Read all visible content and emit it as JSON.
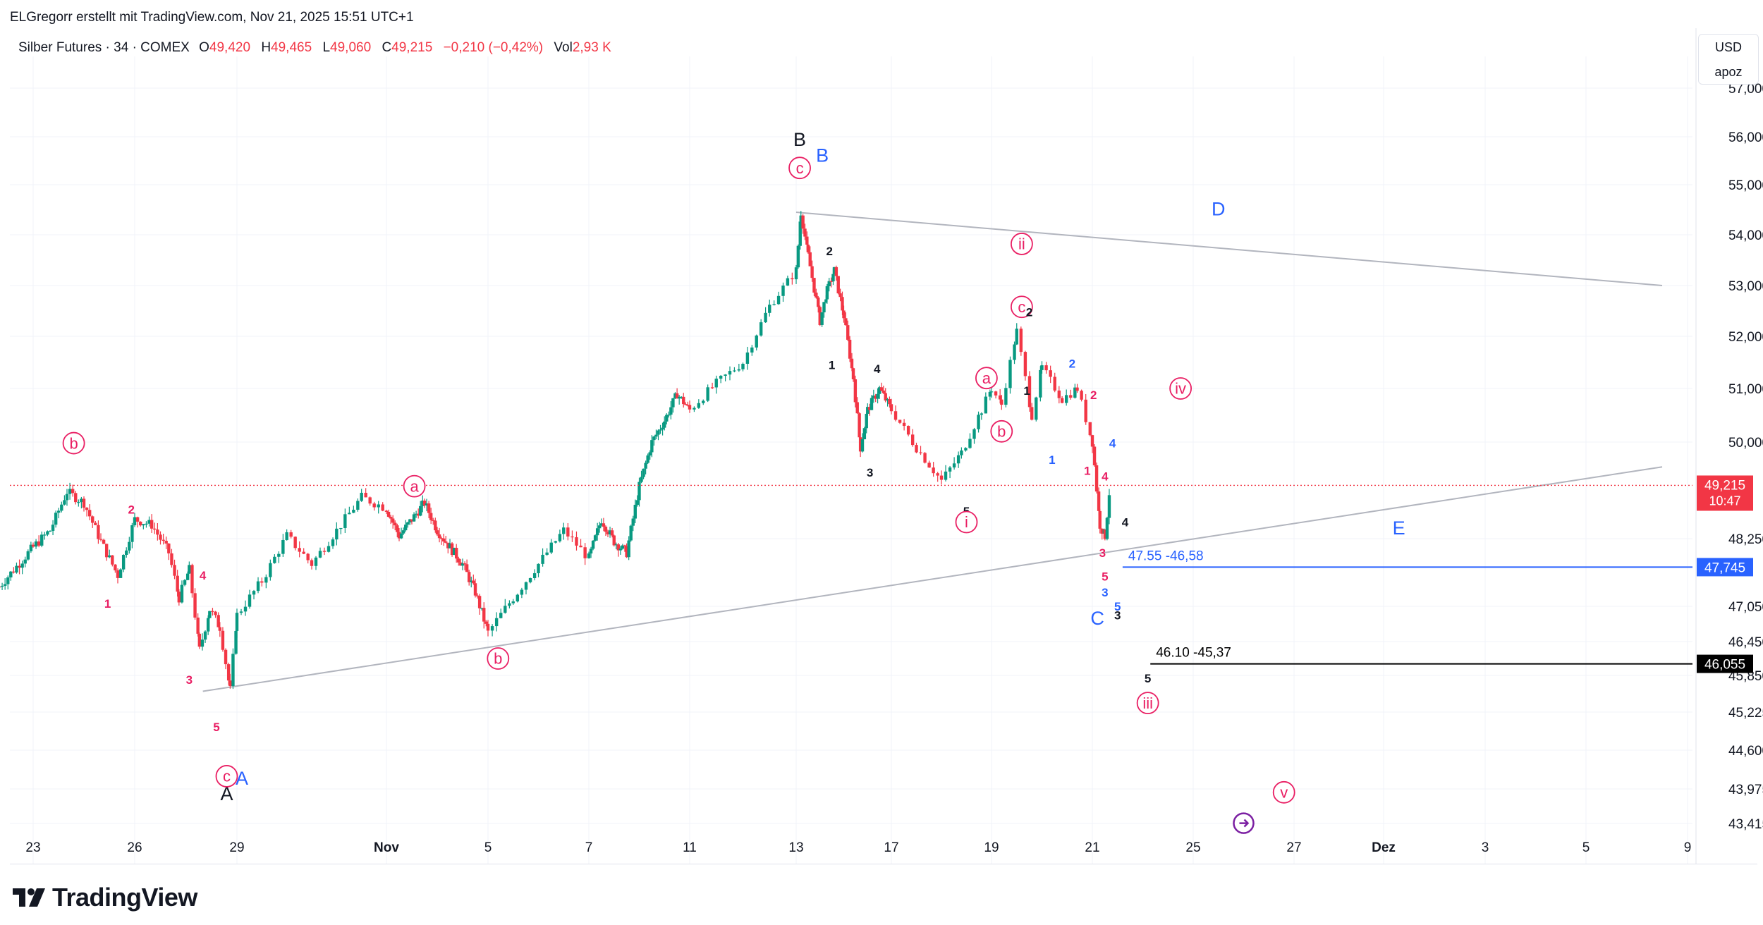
{
  "credit": "ELGregorr erstellt mit TradingView.com, Nov 21, 2025 15:51 UTC+1",
  "legend": {
    "symbol": "Silber Futures · 34 · COMEX",
    "o_label": "O",
    "o": "49,420",
    "h_label": "H",
    "h": "49,465",
    "l_label": "L",
    "l": "49,060",
    "c_label": "C",
    "c": "49,215",
    "change": "−0,210 (−0,42%)",
    "vol_label": "Vol",
    "vol": "2,93 K"
  },
  "currency": {
    "code": "USD",
    "unit": "apoz"
  },
  "brand": "TradingView",
  "colors": {
    "up": "#089981",
    "down": "#f23645",
    "wave_pink": "#e91e63",
    "wave_blue": "#2962ff",
    "wave_black": "#131722",
    "trendline": "#b2b5be",
    "price_line": "#f23645",
    "purple": "#7b1fa2"
  },
  "chart_data": {
    "type": "candlestick",
    "x_ticks": [
      "23",
      "26",
      "29",
      "Nov",
      "5",
      "7",
      "11",
      "13",
      "17",
      "19",
      "21",
      "25",
      "27",
      "Dez",
      "3",
      "5",
      "9"
    ],
    "y_ticks": [
      "57,000",
      "56,000",
      "55,000",
      "54,000",
      "53,000",
      "52,000",
      "51,000",
      "50,000",
      "48,250",
      "47,050",
      "46,450",
      "45,850",
      "45,225",
      "44,600",
      "43,975",
      "43,415"
    ],
    "y_range": [
      43.2,
      57.3
    ],
    "price_line": {
      "value": 49.215,
      "label": "49,215",
      "countdown": "10:47"
    },
    "horizontal_levels": [
      {
        "value": 47.745,
        "axis_label": "47,745",
        "note": "47.55 -46,58",
        "color": "#2962ff"
      },
      {
        "value": 46.055,
        "axis_label": "46,055",
        "note": "46.10 -45,37",
        "color": "#000000"
      }
    ],
    "trendlines": [
      {
        "from": [
          "Oct 28",
          45.58
        ],
        "to": [
          "Dec 8",
          49.55
        ]
      },
      {
        "from": [
          "Nov 13",
          54.45
        ],
        "to": [
          "Dec 8",
          53.0
        ]
      }
    ],
    "price_path": [
      [
        "Oct 22",
        47.4
      ],
      [
        "Oct 23",
        48.1
      ],
      [
        "Oct 23.5",
        48.4
      ],
      [
        "Oct 24",
        49.1
      ],
      [
        "Oct 24.5",
        48.9
      ],
      [
        "Oct 25",
        48.2
      ],
      [
        "Oct 25.5",
        47.6
      ],
      [
        "Oct 26",
        48.6
      ],
      [
        "Oct 26.5",
        48.5
      ],
      [
        "Oct 27",
        48.0
      ],
      [
        "Oct 27.3",
        47.2
      ],
      [
        "Oct 27.6",
        47.7
      ],
      [
        "Oct 27.9",
        46.3
      ],
      [
        "Oct 28.2",
        47.0
      ],
      [
        "Oct 28.5",
        46.7
      ],
      [
        "Oct 28.8",
        45.6
      ],
      [
        "Oct 29",
        46.9
      ],
      [
        "Oct 29.5",
        47.5
      ],
      [
        "Oct 30",
        48.3
      ],
      [
        "Oct 30.5",
        47.8
      ],
      [
        "Oct 31",
        48.4
      ],
      [
        "Oct 31.5",
        49.0
      ],
      [
        "Nov 1",
        48.8
      ],
      [
        "Nov 1.5",
        48.3
      ],
      [
        "Nov 2",
        48.6
      ],
      [
        "Nov 2.5",
        48.9
      ],
      [
        "Nov 3",
        48.4
      ],
      [
        "Nov 3.5",
        48.1
      ],
      [
        "Nov 4",
        47.8
      ],
      [
        "Nov 4.5",
        47.3
      ],
      [
        "Nov 5",
        46.6
      ],
      [
        "Nov 5.5",
        47.2
      ],
      [
        "Nov 6",
        47.8
      ],
      [
        "Nov 6.5",
        48.4
      ],
      [
        "Nov 7",
        47.9
      ],
      [
        "Nov 7.5",
        48.6
      ],
      [
        "Nov 8",
        48.2
      ],
      [
        "Nov 8.5",
        48.0
      ],
      [
        "Nov 9",
        49.2
      ],
      [
        "Nov 9.5",
        50.0
      ],
      [
        "Nov 10",
        50.4
      ],
      [
        "Nov 10.5",
        50.9
      ],
      [
        "Nov 11",
        50.6
      ],
      [
        "Nov 11.5",
        51.1
      ],
      [
        "Nov 12",
        51.5
      ],
      [
        "Nov 12.5",
        52.6
      ],
      [
        "Nov 13",
        53.3
      ],
      [
        "Nov 13.2",
        54.45
      ],
      [
        "Nov 13.5",
        53.6
      ],
      [
        "Nov 14",
        52.3
      ],
      [
        "Nov 14.3",
        52.9
      ],
      [
        "Nov 14.6",
        53.3
      ],
      [
        "Nov 15",
        52.4
      ],
      [
        "Nov 15.4",
        51.2
      ],
      [
        "Nov 15.7",
        49.9
      ],
      [
        "Nov 16",
        50.6
      ],
      [
        "Nov 16.5",
        51.0
      ],
      [
        "Nov 17",
        50.6
      ],
      [
        "Nov 17.5",
        49.9
      ],
      [
        "Nov 18",
        49.3
      ],
      [
        "Nov 18.4",
        49.8
      ],
      [
        "Nov 18.8",
        50.6
      ],
      [
        "Nov 19",
        51.0
      ],
      [
        "Nov 19.2",
        50.7
      ],
      [
        "Nov 19.5",
        52.1
      ],
      [
        "Nov 19.8",
        50.5
      ],
      [
        "Nov 20",
        51.4
      ],
      [
        "Nov 20.4",
        50.8
      ],
      [
        "Nov 20.7",
        51.0
      ],
      [
        "Nov 21",
        50.0
      ],
      [
        "Nov 21.3",
        48.5
      ],
      [
        "Nov 21.5",
        48.3
      ],
      [
        "Nov 21.7",
        49.215
      ]
    ]
  },
  "wave_labels": [
    {
      "text": "B",
      "color": "#131722",
      "size": "big",
      "circled": false,
      "at": [
        "Nov 13.15",
        55.95
      ]
    },
    {
      "text": "B",
      "color": "#2962ff",
      "size": "big",
      "circled": false,
      "at": [
        "Nov 14.1",
        55.62
      ]
    },
    {
      "text": "c",
      "color": "#e91e63",
      "size": "med",
      "circled": true,
      "at": [
        "Nov 13.15",
        55.35
      ]
    },
    {
      "text": "A",
      "color": "#131722",
      "size": "big",
      "circled": false,
      "at": [
        "Oct 28.7",
        43.9
      ]
    },
    {
      "text": "A",
      "color": "#2962ff",
      "size": "big",
      "circled": false,
      "at": [
        "Oct 29.1",
        44.15
      ]
    },
    {
      "text": "c",
      "color": "#e91e63",
      "size": "med",
      "circled": true,
      "at": [
        "Oct 28.7",
        44.18
      ]
    },
    {
      "text": "b",
      "color": "#e91e63",
      "size": "med",
      "circled": true,
      "at": [
        "Oct 24.2",
        49.98
      ]
    },
    {
      "text": "a",
      "color": "#e91e63",
      "size": "med",
      "circled": true,
      "at": [
        "Nov 2.1",
        49.2
      ]
    },
    {
      "text": "b",
      "color": "#e91e63",
      "size": "med",
      "circled": true,
      "at": [
        "Nov 5.2",
        46.15
      ]
    },
    {
      "text": "1",
      "color": "#e91e63",
      "size": "small",
      "circled": false,
      "at": [
        "Oct 25.2",
        47.1
      ]
    },
    {
      "text": "2",
      "color": "#e91e63",
      "size": "small",
      "circled": false,
      "at": [
        "Oct 25.9",
        48.78
      ]
    },
    {
      "text": "3",
      "color": "#e91e63",
      "size": "small",
      "circled": false,
      "at": [
        "Oct 27.6",
        45.78
      ]
    },
    {
      "text": "4",
      "color": "#e91e63",
      "size": "small",
      "circled": false,
      "at": [
        "Oct 28.0",
        47.6
      ]
    },
    {
      "text": "5",
      "color": "#e91e63",
      "size": "small",
      "circled": false,
      "at": [
        "Oct 28.4",
        44.98
      ]
    },
    {
      "text": "2",
      "color": "#131722",
      "size": "small",
      "circled": false,
      "at": [
        "Nov 14.4",
        53.68
      ]
    },
    {
      "text": "1",
      "color": "#131722",
      "size": "small",
      "circled": false,
      "at": [
        "Nov 14.5",
        51.45
      ]
    },
    {
      "text": "4",
      "color": "#131722",
      "size": "small",
      "circled": false,
      "at": [
        "Nov 16.4",
        51.38
      ]
    },
    {
      "text": "3",
      "color": "#131722",
      "size": "small",
      "circled": false,
      "at": [
        "Nov 16.1",
        49.45
      ]
    },
    {
      "text": "5",
      "color": "#131722",
      "size": "small",
      "circled": false,
      "at": [
        "Nov 18.5",
        48.75
      ]
    },
    {
      "text": "i",
      "color": "#e91e63",
      "size": "med",
      "circled": true,
      "at": [
        "Nov 18.5",
        48.55
      ]
    },
    {
      "text": "a",
      "color": "#e91e63",
      "size": "med",
      "circled": true,
      "at": [
        "Nov 18.9",
        51.2
      ]
    },
    {
      "text": "b",
      "color": "#e91e63",
      "size": "med",
      "circled": true,
      "at": [
        "Nov 19.2",
        50.2
      ]
    },
    {
      "text": "ii",
      "color": "#e91e63",
      "size": "med",
      "circled": true,
      "at": [
        "Nov 19.6",
        53.82
      ]
    },
    {
      "text": "c",
      "color": "#e91e63",
      "size": "med",
      "circled": true,
      "at": [
        "Nov 19.6",
        52.58
      ]
    },
    {
      "text": "2",
      "color": "#131722",
      "size": "small",
      "circled": false,
      "at": [
        "Nov 19.75",
        52.48
      ]
    },
    {
      "text": "1",
      "color": "#131722",
      "size": "small",
      "circled": false,
      "at": [
        "Nov 19.7",
        50.96
      ]
    },
    {
      "text": "2",
      "color": "#2962ff",
      "size": "small",
      "circled": false,
      "at": [
        "Nov 20.6",
        51.48
      ]
    },
    {
      "text": "1",
      "color": "#2962ff",
      "size": "small",
      "circled": false,
      "at": [
        "Nov 20.2",
        49.68
      ]
    },
    {
      "text": "2",
      "color": "#e91e63",
      "size": "small",
      "circled": false,
      "at": [
        "Nov 21.05",
        50.88
      ]
    },
    {
      "text": "1",
      "color": "#e91e63",
      "size": "small",
      "circled": false,
      "at": [
        "Nov 20.9",
        49.48
      ]
    },
    {
      "text": "4",
      "color": "#e91e63",
      "size": "small",
      "circled": false,
      "at": [
        "Nov 21.5",
        49.38
      ]
    },
    {
      "text": "4",
      "color": "#2962ff",
      "size": "small",
      "circled": false,
      "at": [
        "Nov 21.8",
        49.98
      ]
    },
    {
      "text": "3",
      "color": "#e91e63",
      "size": "small",
      "circled": false,
      "at": [
        "Nov 21.4",
        48.0
      ]
    },
    {
      "text": "5",
      "color": "#e91e63",
      "size": "small",
      "circled": false,
      "at": [
        "Nov 21.5",
        47.58
      ]
    },
    {
      "text": "3",
      "color": "#2962ff",
      "size": "small",
      "circled": false,
      "at": [
        "Nov 21.5",
        47.3
      ]
    },
    {
      "text": "4",
      "color": "#131722",
      "size": "small",
      "circled": false,
      "at": [
        "Nov 22.3",
        48.55
      ]
    },
    {
      "text": "5",
      "color": "#2962ff",
      "size": "small",
      "circled": false,
      "at": [
        "Nov 22.0",
        47.05
      ]
    },
    {
      "text": "3",
      "color": "#131722",
      "size": "small",
      "circled": false,
      "at": [
        "Nov 22.0",
        46.9
      ]
    },
    {
      "text": "C",
      "color": "#2962ff",
      "size": "big",
      "circled": false,
      "at": [
        "Nov 21.2",
        46.85
      ]
    },
    {
      "text": "5",
      "color": "#131722",
      "size": "small",
      "circled": false,
      "at": [
        "Nov 23.2",
        45.8
      ]
    },
    {
      "text": "iii",
      "color": "#e91e63",
      "size": "med",
      "circled": true,
      "at": [
        "Nov 23.2",
        45.38
      ]
    },
    {
      "text": "iv",
      "color": "#e91e63",
      "size": "med",
      "circled": true,
      "at": [
        "Nov 24.5",
        51.0
      ]
    },
    {
      "text": "v",
      "color": "#e91e63",
      "size": "med",
      "circled": true,
      "at": [
        "Nov 26.8",
        43.92
      ]
    },
    {
      "text": "D",
      "color": "#2962ff",
      "size": "big",
      "circled": false,
      "at": [
        "Nov 25.5",
        54.52
      ]
    },
    {
      "text": "E",
      "color": "#2962ff",
      "size": "big",
      "circled": false,
      "at": [
        "Dez 1.3",
        48.45
      ]
    }
  ]
}
